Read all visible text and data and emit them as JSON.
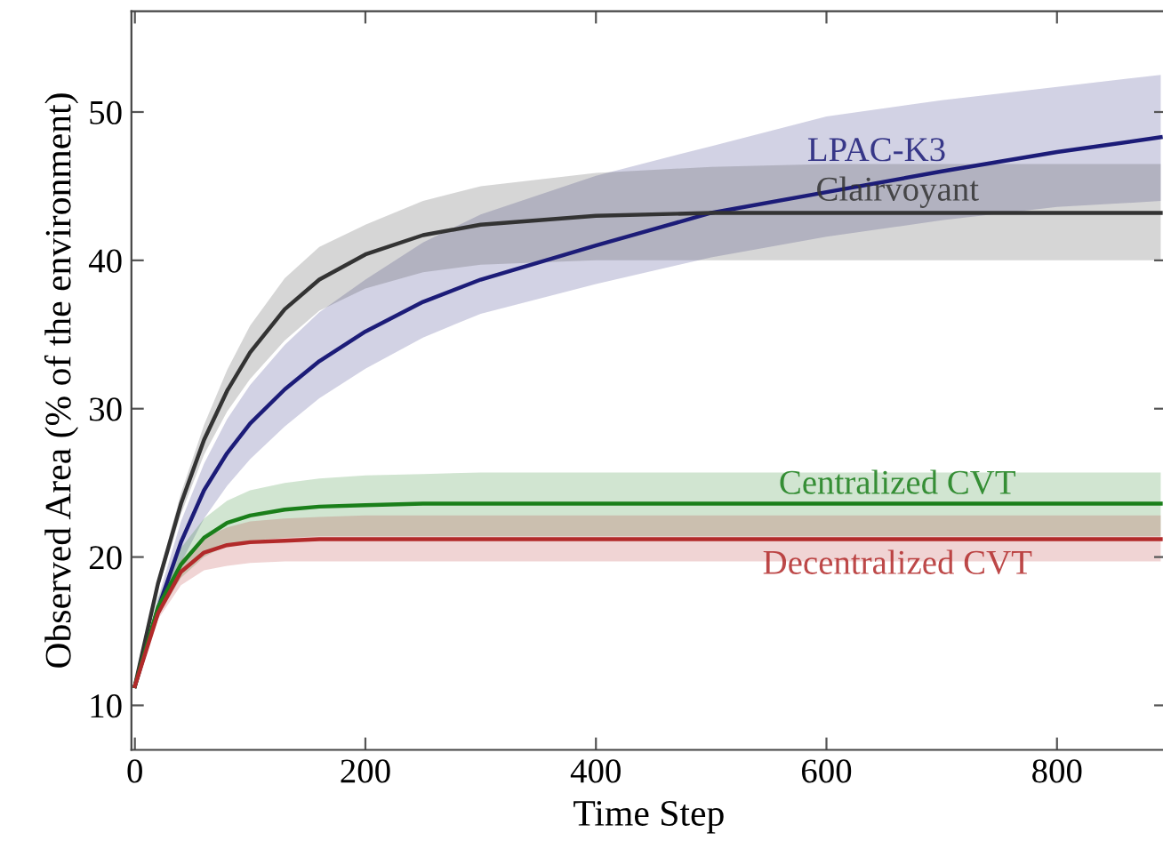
{
  "chart_data": {
    "type": "line",
    "xlabel": "Time Step",
    "ylabel": "Observed Area (% of the environment)",
    "xlim": [
      -3,
      895
    ],
    "ylim": [
      7,
      56.8
    ],
    "xticks": [
      0,
      200,
      400,
      600,
      800
    ],
    "yticks": [
      10,
      20,
      30,
      40,
      50
    ],
    "grid": false,
    "legend": false,
    "marker": "none",
    "line_style": "solid",
    "x": [
      0,
      20,
      40,
      60,
      80,
      100,
      130,
      160,
      200,
      250,
      300,
      400,
      500,
      600,
      700,
      800,
      890
    ],
    "series": [
      {
        "name": "LPAC-K3",
        "color": "#1c1c78",
        "values": [
          11.3,
          16.5,
          21.0,
          24.5,
          27.0,
          29.0,
          31.3,
          33.2,
          35.2,
          37.2,
          38.7,
          41.0,
          43.2,
          44.6,
          46.0,
          47.3,
          48.3
        ],
        "lower": [
          11.3,
          15.8,
          19.6,
          22.6,
          24.8,
          26.6,
          28.8,
          30.7,
          32.7,
          34.8,
          36.4,
          38.4,
          40.2,
          41.6,
          42.7,
          43.6,
          44.0
        ],
        "upper": [
          11.3,
          17.2,
          22.4,
          26.3,
          29.3,
          31.6,
          34.3,
          36.5,
          38.7,
          41.2,
          43.1,
          45.7,
          47.7,
          49.7,
          50.8,
          51.7,
          52.5
        ]
      },
      {
        "name": "Clairvoyant",
        "color": "#333333",
        "values": [
          11.3,
          18.2,
          23.6,
          27.9,
          31.2,
          33.8,
          36.7,
          38.7,
          40.4,
          41.7,
          42.4,
          43.0,
          43.2,
          43.2,
          43.2,
          43.2,
          43.2
        ],
        "lower": [
          11.3,
          17.8,
          22.9,
          26.9,
          29.8,
          32.0,
          34.6,
          36.6,
          38.1,
          39.2,
          39.7,
          40.0,
          40.0,
          40.0,
          40.0,
          40.0,
          40.0
        ],
        "upper": [
          11.3,
          18.6,
          24.3,
          28.9,
          32.6,
          35.6,
          38.8,
          40.9,
          42.4,
          44.0,
          45.0,
          45.9,
          46.3,
          46.5,
          46.5,
          46.5,
          46.5
        ]
      },
      {
        "name": "Centralized CVT",
        "color": "#1a7f1a",
        "values": [
          11.3,
          16.6,
          19.5,
          21.3,
          22.3,
          22.8,
          23.2,
          23.4,
          23.5,
          23.6,
          23.6,
          23.6,
          23.6,
          23.6,
          23.6,
          23.6,
          23.6
        ],
        "lower": [
          11.3,
          16.0,
          18.6,
          20.0,
          20.8,
          21.1,
          21.3,
          21.4,
          21.4,
          21.4,
          21.4,
          21.4,
          21.4,
          21.4,
          21.4,
          21.4,
          21.4
        ],
        "upper": [
          11.3,
          17.2,
          20.6,
          22.6,
          23.8,
          24.5,
          25.0,
          25.3,
          25.5,
          25.6,
          25.7,
          25.7,
          25.7,
          25.7,
          25.7,
          25.7,
          25.7
        ]
      },
      {
        "name": "Decentralized CVT",
        "color": "#b22a2a",
        "values": [
          11.3,
          16.2,
          19.0,
          20.3,
          20.8,
          21.0,
          21.1,
          21.2,
          21.2,
          21.2,
          21.2,
          21.2,
          21.2,
          21.2,
          21.2,
          21.2,
          21.2
        ],
        "lower": [
          11.3,
          15.8,
          18.1,
          19.1,
          19.4,
          19.6,
          19.7,
          19.7,
          19.7,
          19.7,
          19.7,
          19.7,
          19.7,
          19.7,
          19.7,
          19.7,
          19.7
        ],
        "upper": [
          11.3,
          16.6,
          19.8,
          21.3,
          22.0,
          22.4,
          22.6,
          22.7,
          22.8,
          22.8,
          22.8,
          22.8,
          22.8,
          22.8,
          22.8,
          22.8,
          22.8
        ]
      }
    ]
  }
}
